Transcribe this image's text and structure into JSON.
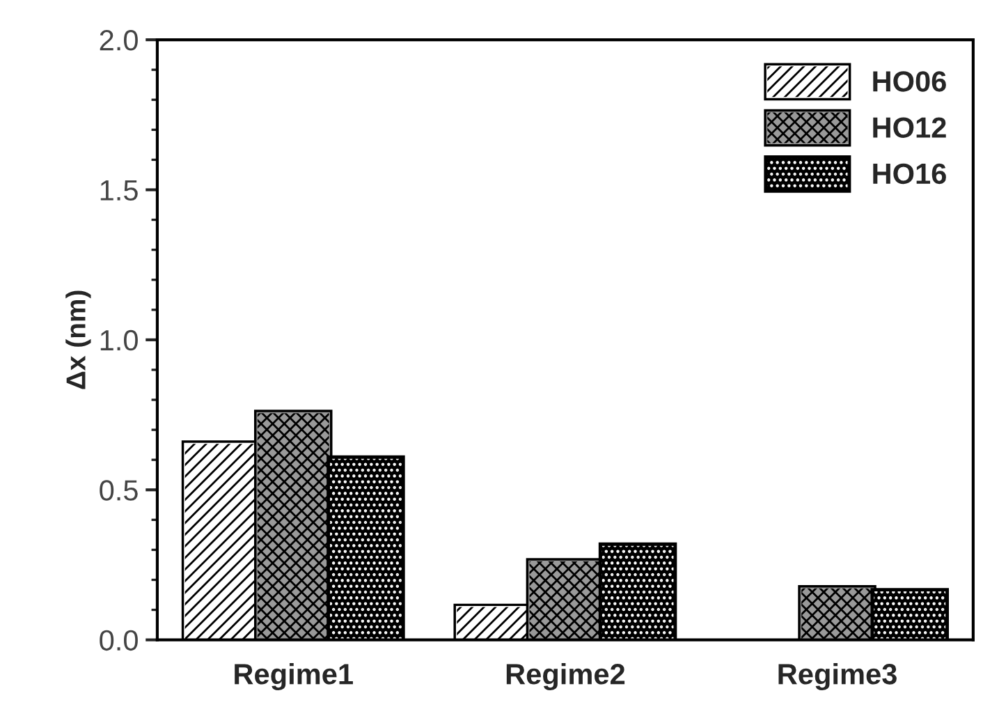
{
  "chart_data": {
    "type": "bar",
    "ylabel": "Δx (nm)",
    "categories": [
      "Regime1",
      "Regime2",
      "Regime3"
    ],
    "series": [
      {
        "name": "HO06",
        "color": "#ffffff",
        "values": [
          0.655,
          0.111,
          null
        ]
      },
      {
        "name": "HO12",
        "color": "#999999",
        "values": [
          0.757,
          0.263,
          0.173
        ]
      },
      {
        "name": "HO16",
        "color": "#000000",
        "values": [
          0.605,
          0.315,
          0.163
        ]
      }
    ],
    "ylim": [
      0,
      2.0
    ],
    "yticks": [
      {
        "value": 0,
        "label": "0.0"
      },
      {
        "value": 0.5,
        "label": "0.5"
      },
      {
        "value": 1.0,
        "label": "1.0"
      },
      {
        "value": 1.5,
        "label": "1.5"
      },
      {
        "value": 2.0,
        "label": "2.0"
      }
    ],
    "grid": false,
    "legend": "top right"
  }
}
